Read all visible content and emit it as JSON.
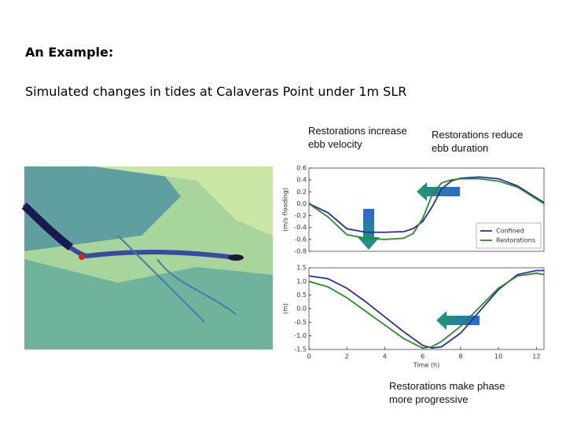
{
  "slide": {
    "heading": "An Example:",
    "subtitle": "Simulated changes in tides at Calaveras Point under 1m SLR",
    "annotations": [
      [
        "Restorations increase",
        "ebb velocity"
      ],
      [
        "Restorations reduce",
        "ebb duration"
      ],
      [
        "Restorations make phase",
        "more progressive"
      ]
    ]
  },
  "chart_data": [
    {
      "type": "line",
      "ylabel": "(m/s flooding)",
      "xlim": [
        0,
        12.4
      ],
      "ylim": [
        -0.8,
        0.6
      ],
      "yticks": [
        0.6,
        0.4,
        0.2,
        {
          "value": 0,
          "label": "0.0"
        },
        -0.2,
        -0.4,
        -0.6,
        -0.8
      ],
      "x": [
        0,
        1,
        2,
        3,
        4,
        5,
        5.5,
        6,
        6.5,
        7,
        7.5,
        8,
        9,
        10,
        11,
        12,
        12.4
      ],
      "legend": "lower right",
      "series": [
        {
          "name": "Confined",
          "color": "#2a2aa8",
          "values": [
            0,
            -0.15,
            -0.42,
            -0.48,
            -0.48,
            -0.47,
            -0.42,
            -0.3,
            -0.05,
            0.25,
            0.38,
            0.43,
            0.45,
            0.42,
            0.3,
            0.1,
            0.02
          ]
        },
        {
          "name": "Restorations",
          "color": "#2a8a2a",
          "values": [
            0,
            -0.22,
            -0.52,
            -0.58,
            -0.6,
            -0.58,
            -0.5,
            -0.25,
            0.15,
            0.35,
            0.4,
            0.42,
            0.42,
            0.38,
            0.28,
            0.08,
            0
          ]
        }
      ]
    },
    {
      "type": "line",
      "ylabel": "(m)",
      "xlabel": "Time (h)",
      "xlim": [
        0,
        12.4
      ],
      "ylim": [
        -1.5,
        1.5
      ],
      "yticks": [
        1.5,
        {
          "value": 1,
          "label": "1.0"
        },
        0.5,
        {
          "value": 0,
          "label": "0.0"
        },
        -0.5,
        {
          "value": -1,
          "label": "-1.0"
        },
        -1.5
      ],
      "xticks": [
        0,
        2,
        4,
        6,
        8,
        10,
        12
      ],
      "x": [
        0,
        1,
        2,
        3,
        4,
        5,
        6,
        6.5,
        7,
        8,
        9,
        10,
        11,
        12,
        12.4
      ],
      "series": [
        {
          "color": "#2a2aa8",
          "values": [
            1.2,
            1.1,
            0.75,
            0.25,
            -0.3,
            -0.85,
            -1.35,
            -1.45,
            -1.4,
            -0.9,
            -0.1,
            0.7,
            1.25,
            1.4,
            1.4
          ]
        },
        {
          "color": "#2a8a2a",
          "values": [
            1.0,
            0.8,
            0.4,
            -0.1,
            -0.6,
            -1.1,
            -1.45,
            -1.4,
            -1.2,
            -0.65,
            0.05,
            0.75,
            1.2,
            1.3,
            1.25
          ]
        }
      ]
    }
  ]
}
